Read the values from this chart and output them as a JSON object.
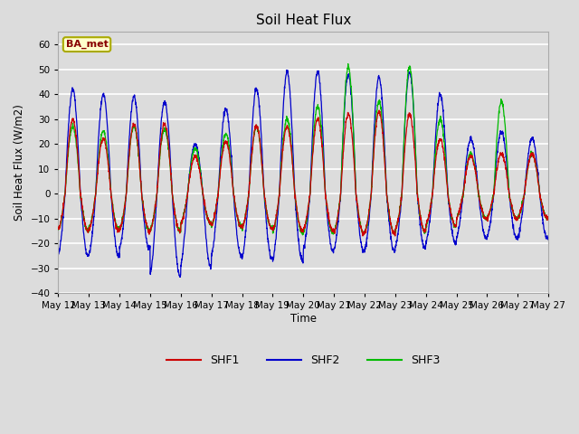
{
  "title": "Soil Heat Flux",
  "ylabel": "Soil Heat Flux (W/m2)",
  "xlabel": "Time",
  "ylim": [
    -40,
    65
  ],
  "yticks": [
    -40,
    -30,
    -20,
    -10,
    0,
    10,
    20,
    30,
    40,
    50,
    60
  ],
  "bg_color": "#dcdcdc",
  "plot_bg_color": "#dcdcdc",
  "grid_color": "#ffffff",
  "shf1_color": "#cc0000",
  "shf2_color": "#0000cc",
  "shf3_color": "#00bb00",
  "legend_box_color": "#ffffcc",
  "legend_box_edge": "#aaaa00",
  "station_label": "BA_met",
  "station_label_color": "#880000",
  "days": [
    "May 12",
    "May 13",
    "May 14",
    "May 15",
    "May 16",
    "May 17",
    "May 18",
    "May 19",
    "May 20",
    "May 21",
    "May 22",
    "May 23",
    "May 24",
    "May 25",
    "May 26",
    "May 27"
  ],
  "n_days": 16,
  "points_per_day": 144
}
